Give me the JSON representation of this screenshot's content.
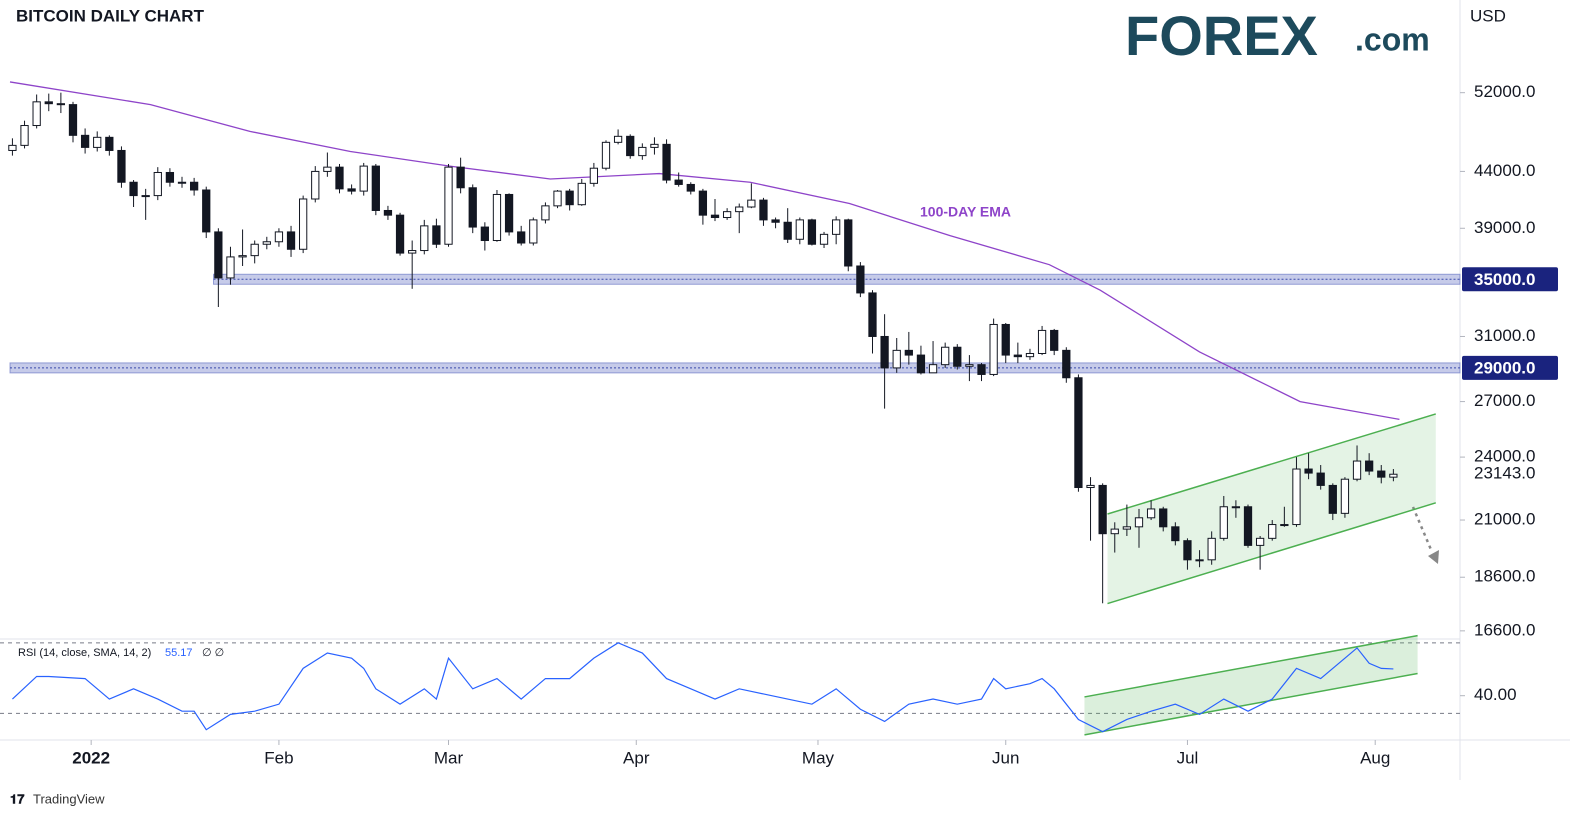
{
  "chart_data": {
    "type": "candlestick",
    "title": "BITCOIN DAILY CHART",
    "brand": {
      "name": "FOREX",
      "suffix": ".com"
    },
    "currency": "USD",
    "footer": "TradingView",
    "log_scale": true,
    "xlim": [
      -0.2,
      119.5
    ],
    "xticks": [
      {
        "value": 6.5,
        "label": "2022"
      },
      {
        "value": 22,
        "label": "Feb"
      },
      {
        "value": 36,
        "label": "Mar"
      },
      {
        "value": 51.5,
        "label": "Apr"
      },
      {
        "value": 66.5,
        "label": "May"
      },
      {
        "value": 82,
        "label": "Jun"
      },
      {
        "value": 97,
        "label": "Jul"
      },
      {
        "value": 112.5,
        "label": "Aug"
      }
    ],
    "ylim": [
      16350,
      63300
    ],
    "yticks": [
      {
        "value": 52000,
        "label": "52000.0"
      },
      {
        "value": 44000,
        "label": "44000.0"
      },
      {
        "value": 39000,
        "label": "39000.0"
      },
      {
        "value": 31000,
        "label": "31000.0"
      },
      {
        "value": 27000,
        "label": "27000.0"
      },
      {
        "value": 24000,
        "label": "24000.0"
      },
      {
        "value": 21000,
        "label": "21000.0"
      },
      {
        "value": 18600,
        "label": "18600.0"
      },
      {
        "value": 16600,
        "label": "16600.0"
      }
    ],
    "last_price": {
      "value": 23143,
      "label": "23143.0"
    },
    "up_color": "#ffffff",
    "down_color": "#131722",
    "candles": [
      [
        46000,
        47200,
        45500,
        46500
      ],
      [
        46500,
        49000,
        46200,
        48500
      ],
      [
        48500,
        51800,
        48200,
        51000
      ],
      [
        51000,
        51900,
        50000,
        50800
      ],
      [
        50800,
        52000,
        49800,
        50700
      ],
      [
        50700,
        51000,
        46800,
        47500
      ],
      [
        47500,
        48200,
        45700,
        46300
      ],
      [
        46300,
        47900,
        45900,
        47300
      ],
      [
        47300,
        47500,
        45500,
        46000
      ],
      [
        46000,
        46400,
        42500,
        43000
      ],
      [
        43000,
        43200,
        40800,
        41800
      ],
      [
        41800,
        42400,
        39700,
        41800
      ],
      [
        41800,
        44400,
        41400,
        43900
      ],
      [
        43900,
        44300,
        42600,
        43000
      ],
      [
        43000,
        43500,
        42500,
        43000
      ],
      [
        43000,
        43400,
        41800,
        42300
      ],
      [
        42300,
        42600,
        38200,
        38700
      ],
      [
        38700,
        39000,
        33000,
        35100
      ],
      [
        35100,
        37500,
        34600,
        36700
      ],
      [
        36700,
        38900,
        36000,
        36800
      ],
      [
        36800,
        38000,
        36200,
        37700
      ],
      [
        37700,
        38300,
        37300,
        37900
      ],
      [
        37900,
        39000,
        37500,
        38700
      ],
      [
        38700,
        39200,
        36700,
        37300
      ],
      [
        37300,
        41800,
        37000,
        41500
      ],
      [
        41500,
        44500,
        41200,
        44000
      ],
      [
        44000,
        45800,
        43500,
        44400
      ],
      [
        44400,
        44700,
        42000,
        42400
      ],
      [
        42400,
        42800,
        41900,
        42200
      ],
      [
        42200,
        44800,
        41800,
        44500
      ],
      [
        44500,
        44700,
        40100,
        40500
      ],
      [
        40500,
        40900,
        39700,
        40100
      ],
      [
        40100,
        40300,
        36800,
        37000
      ],
      [
        37000,
        38000,
        34300,
        37200
      ],
      [
        37200,
        39700,
        36900,
        39200
      ],
      [
        39200,
        39800,
        37400,
        37700
      ],
      [
        37700,
        44700,
        37500,
        44400
      ],
      [
        44400,
        45300,
        42000,
        42500
      ],
      [
        42500,
        42800,
        38600,
        39100
      ],
      [
        39100,
        39500,
        37200,
        38000
      ],
      [
        38000,
        42300,
        37900,
        41900
      ],
      [
        41900,
        42000,
        38400,
        38700
      ],
      [
        38700,
        39200,
        37600,
        37800
      ],
      [
        37800,
        39900,
        37600,
        39700
      ],
      [
        39700,
        41200,
        39400,
        40900
      ],
      [
        40900,
        42300,
        40700,
        42200
      ],
      [
        42200,
        42400,
        40500,
        41000
      ],
      [
        41000,
        43300,
        40900,
        42900
      ],
      [
        42900,
        44800,
        42600,
        44300
      ],
      [
        44300,
        47000,
        44100,
        46800
      ],
      [
        46800,
        48100,
        46600,
        47400
      ],
      [
        47400,
        47600,
        45200,
        45500
      ],
      [
        45500,
        46700,
        45100,
        46300
      ],
      [
        46300,
        47300,
        45600,
        46600
      ],
      [
        46600,
        47100,
        42900,
        43200
      ],
      [
        43200,
        43900,
        42600,
        42800
      ],
      [
        42800,
        43000,
        41900,
        42200
      ],
      [
        42200,
        42400,
        39300,
        40100
      ],
      [
        40100,
        41500,
        39600,
        39900
      ],
      [
        39900,
        40700,
        39700,
        40400
      ],
      [
        40400,
        41100,
        38600,
        40800
      ],
      [
        40800,
        42900,
        40700,
        41400
      ],
      [
        41400,
        41600,
        39200,
        39700
      ],
      [
        39700,
        39900,
        39000,
        39500
      ],
      [
        39500,
        40700,
        37800,
        38100
      ],
      [
        38100,
        39900,
        37700,
        39700
      ],
      [
        39700,
        39800,
        37600,
        37700
      ],
      [
        37700,
        38700,
        37400,
        38500
      ],
      [
        38500,
        40000,
        37700,
        39700
      ],
      [
        39700,
        39800,
        35600,
        36000
      ],
      [
        36000,
        36300,
        33700,
        34000
      ],
      [
        34000,
        34200,
        29900,
        31000
      ],
      [
        31000,
        32500,
        26600,
        29000
      ],
      [
        29000,
        30900,
        28700,
        30100
      ],
      [
        30100,
        31300,
        29200,
        29800
      ],
      [
        29800,
        30400,
        28600,
        28700
      ],
      [
        28700,
        30700,
        28700,
        29200
      ],
      [
        29200,
        30600,
        29000,
        30300
      ],
      [
        30300,
        30500,
        28900,
        29100
      ],
      [
        29100,
        29800,
        28200,
        29200
      ],
      [
        29200,
        29300,
        28200,
        28600
      ],
      [
        28600,
        32200,
        28500,
        31800
      ],
      [
        31800,
        31900,
        29300,
        29800
      ],
      [
        29800,
        30600,
        29300,
        29700
      ],
      [
        29700,
        30200,
        29500,
        29900
      ],
      [
        29900,
        31700,
        29800,
        31400
      ],
      [
        31400,
        31500,
        29800,
        30100
      ],
      [
        30100,
        30300,
        28100,
        28400
      ],
      [
        28400,
        28600,
        22300,
        22500
      ],
      [
        22500,
        23000,
        20100,
        22600
      ],
      [
        22600,
        22700,
        17600,
        20400
      ],
      [
        20400,
        20900,
        19600,
        20600
      ],
      [
        20600,
        21700,
        20300,
        20700
      ],
      [
        20700,
        21500,
        19800,
        21100
      ],
      [
        21100,
        21900,
        21000,
        21500
      ],
      [
        21500,
        21600,
        20500,
        20700
      ],
      [
        20700,
        20900,
        19900,
        20100
      ],
      [
        20100,
        20200,
        18900,
        19300
      ],
      [
        19300,
        19700,
        19000,
        19300
      ],
      [
        19300,
        20500,
        19100,
        20200
      ],
      [
        20200,
        22100,
        20100,
        21600
      ],
      [
        21600,
        21900,
        21100,
        21600
      ],
      [
        21600,
        21700,
        19800,
        19900
      ],
      [
        19900,
        20300,
        18900,
        20200
      ],
      [
        20200,
        21000,
        20100,
        20800
      ],
      [
        20800,
        21600,
        20700,
        20800
      ],
      [
        20800,
        24000,
        20700,
        23400
      ],
      [
        23400,
        24200,
        22900,
        23200
      ],
      [
        23200,
        23600,
        22400,
        22600
      ],
      [
        22600,
        22700,
        21000,
        21300
      ],
      [
        21300,
        23000,
        21100,
        22900
      ],
      [
        22900,
        24600,
        22800,
        23800
      ],
      [
        23800,
        24200,
        23100,
        23300
      ],
      [
        23300,
        23600,
        22700,
        23000
      ],
      [
        23000,
        23400,
        22800,
        23143
      ]
    ],
    "ema": {
      "name": "100-DAY EMA",
      "color": "#8e44c9",
      "x": [
        -0.2,
        11.4,
        19.6,
        27.9,
        36.1,
        44.4,
        53.4,
        60.9,
        69.1,
        77.4,
        85.6,
        89.8,
        98,
        106.3,
        114.5
      ],
      "values": [
        53200,
        50700,
        47900,
        45900,
        44500,
        43300,
        43800,
        43000,
        41100,
        38400,
        36100,
        34200,
        30000,
        27000,
        26000
      ]
    },
    "levels": [
      {
        "value": 35000,
        "label": "35000.0",
        "start": 16.6
      },
      {
        "value": 29000,
        "label": "29000.0",
        "start": -0.2
      }
    ],
    "channel": {
      "color": "#4caf50",
      "x": [
        90.4,
        117.5
      ],
      "lower": [
        17590,
        21780
      ],
      "upper": [
        21270,
        26300
      ]
    },
    "rsi": {
      "type": "line",
      "title": "RSI (14, close, SMA, 14, 2)",
      "last_label": "55.17",
      "extra": "∅ ∅",
      "color": "#2962ff",
      "ylim": [
        16,
        75
      ],
      "yticks": [
        {
          "value": 40,
          "label": "40.00"
        }
      ],
      "bands": [
        70,
        30
      ],
      "x": [
        0,
        2,
        3,
        6,
        8,
        10,
        12,
        14,
        15,
        16,
        18,
        20,
        22,
        24,
        26,
        28,
        29,
        30,
        32,
        34,
        35,
        36,
        38,
        40,
        42,
        44,
        46,
        48,
        50,
        52,
        54,
        56,
        58,
        60,
        62,
        64,
        66,
        68,
        70,
        72,
        74,
        76,
        78,
        80,
        81,
        82,
        84,
        85,
        86,
        88,
        90,
        92,
        94,
        96,
        98,
        100,
        102,
        104,
        106,
        108,
        110,
        111,
        112,
        113,
        114
      ],
      "values": [
        38.1,
        50.9,
        50.9,
        49.7,
        38.1,
        43.9,
        38.1,
        31.2,
        31.2,
        20.7,
        29.4,
        31.2,
        35.2,
        55.5,
        64.2,
        61.3,
        55.5,
        43.9,
        35.2,
        43.9,
        38.1,
        61.3,
        43.9,
        49.7,
        38.1,
        49.7,
        49.7,
        61.3,
        70,
        64.2,
        49.7,
        43.9,
        38.1,
        43.9,
        41,
        38.1,
        35.2,
        43.9,
        32.3,
        25.4,
        35.2,
        38.1,
        35.2,
        38.1,
        49.7,
        43.9,
        46.8,
        49.7,
        43.9,
        26.5,
        19.6,
        26.5,
        31.2,
        35.2,
        29.4,
        38.1,
        31.2,
        38.1,
        55.5,
        49.7,
        61.3,
        67.1,
        58.4,
        55.5,
        55.17
      ],
      "channel": {
        "x": [
          88.5,
          116
        ],
        "lower": [
          17.8,
          52.6
        ],
        "upper": [
          39.3,
          74.1
        ]
      }
    }
  }
}
